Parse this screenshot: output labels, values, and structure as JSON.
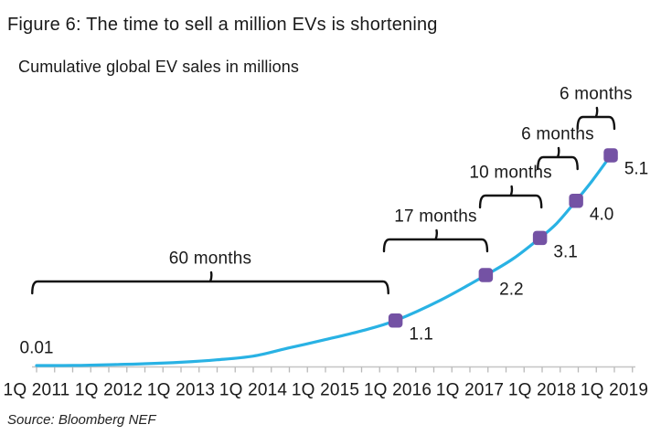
{
  "figure": {
    "title": "Figure 6: The time to sell a million EVs is shortening",
    "subtitle": "Cumulative global EV sales in millions",
    "source": "Source: Bloomberg NEF"
  },
  "chart_data": {
    "type": "line",
    "title": "Cumulative global EV sales in millions",
    "unit": "million vehicles",
    "x_axis": {
      "tick_labels": [
        "1Q 2011",
        "1Q 2012",
        "1Q 2013",
        "1Q 2014",
        "1Q 2015",
        "1Q 2016",
        "1Q 2017",
        "1Q 2018",
        "1Q 2019"
      ],
      "start_year": 2011,
      "end_year": 2019,
      "minor_ticks_per_year": 4,
      "axis_color": "#c5c5c5",
      "tick_color": "#b9b9b9"
    },
    "y_axis": {
      "min": 0,
      "max": 5.1,
      "visible": false,
      "grid": false
    },
    "series": [
      {
        "name": "Cumulative global EV sales",
        "color": "#29b2e4",
        "samples": [
          [
            2011.0,
            0.01
          ],
          [
            2011.5,
            0.013
          ],
          [
            2012.0,
            0.03
          ],
          [
            2012.5,
            0.055
          ],
          [
            2013.0,
            0.09
          ],
          [
            2013.5,
            0.15
          ],
          [
            2014.0,
            0.24
          ],
          [
            2014.5,
            0.44
          ],
          [
            2015.0,
            0.64
          ],
          [
            2015.5,
            0.85
          ],
          [
            2015.97,
            1.1
          ],
          [
            2016.6,
            1.6
          ],
          [
            2017.22,
            2.2
          ],
          [
            2017.6,
            2.6
          ],
          [
            2017.97,
            3.1
          ],
          [
            2018.2,
            3.45
          ],
          [
            2018.47,
            4.0
          ],
          [
            2018.7,
            4.5
          ],
          [
            2018.95,
            5.1
          ]
        ]
      }
    ],
    "start_label": {
      "text": "0.01",
      "year": 2011.0,
      "value": 0.01
    },
    "milestones": [
      {
        "label": "1.1",
        "year": 2015.97,
        "value": 1.1
      },
      {
        "label": "2.2",
        "year": 2017.22,
        "value": 2.2
      },
      {
        "label": "3.1",
        "year": 2017.97,
        "value": 3.1
      },
      {
        "label": "4.0",
        "year": 2018.47,
        "value": 4.0
      },
      {
        "label": "5.1",
        "year": 2018.95,
        "value": 5.1
      }
    ],
    "marker_color": "#7452a4",
    "annotation_color": "#111111",
    "annotations": [
      {
        "label": "60 months",
        "months": 60,
        "from_year": 2010.94,
        "to_year": 2015.87
      },
      {
        "label": "17 months",
        "months": 17,
        "from_year": 2015.81,
        "to_year": 2017.24
      },
      {
        "label": "10 months",
        "months": 10,
        "from_year": 2017.14,
        "to_year": 2017.99
      },
      {
        "label": "6 months",
        "months": 6,
        "from_year": 2017.94,
        "to_year": 2018.49
      },
      {
        "label": "6 months",
        "months": 6,
        "from_year": 2018.49,
        "to_year": 2019.0
      }
    ]
  }
}
